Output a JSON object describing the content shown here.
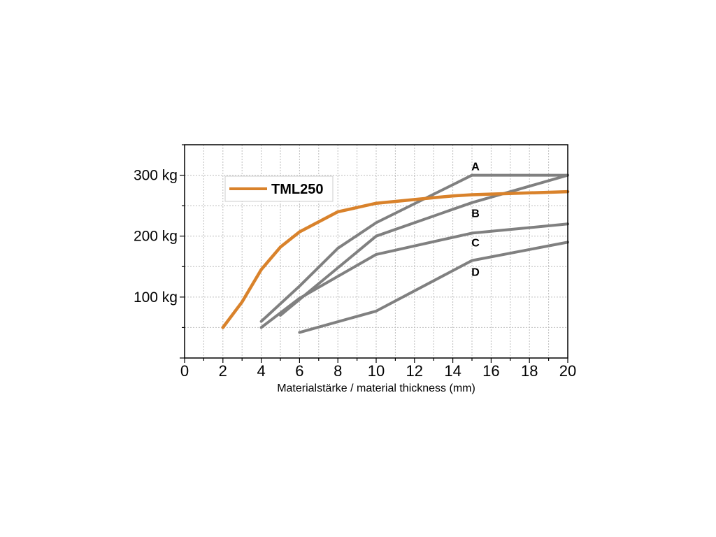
{
  "chart_data": {
    "type": "line",
    "title": "",
    "xlabel": "Materialstärke / material thickness (mm)",
    "ylabel": "",
    "xlim": [
      0,
      20
    ],
    "ylim": [
      0,
      350
    ],
    "x_ticks": [
      "0",
      "2",
      "4",
      "6",
      "8",
      "10",
      "12",
      "14",
      "16",
      "18",
      "20"
    ],
    "y_ticks": [
      {
        "value": 100,
        "label": "100 kg"
      },
      {
        "value": 200,
        "label": "200 kg"
      },
      {
        "value": 300,
        "label": "300 kg"
      }
    ],
    "grid": true,
    "legend": {
      "position": "top-left",
      "entries": [
        "TML250"
      ]
    },
    "series": [
      {
        "name": "TML250",
        "color": "#d9822b",
        "points": [
          [
            2,
            50
          ],
          [
            3,
            92
          ],
          [
            4,
            145
          ],
          [
            5,
            182
          ],
          [
            6,
            207
          ],
          [
            8,
            240
          ],
          [
            10,
            254
          ],
          [
            12,
            260
          ],
          [
            14,
            266
          ],
          [
            15,
            268
          ],
          [
            20,
            273
          ]
        ]
      },
      {
        "name": "A",
        "color": "#808080",
        "points": [
          [
            4,
            60
          ],
          [
            6,
            118
          ],
          [
            8,
            180
          ],
          [
            10,
            222
          ],
          [
            15,
            300
          ],
          [
            20,
            300
          ]
        ],
        "label_at": [
          15,
          315
        ]
      },
      {
        "name": "B",
        "color": "#808080",
        "points": [
          [
            5,
            70
          ],
          [
            8,
            148
          ],
          [
            10,
            200
          ],
          [
            15,
            255
          ],
          [
            20,
            300
          ]
        ],
        "label_at": [
          15,
          238
        ]
      },
      {
        "name": "C",
        "color": "#808080",
        "points": [
          [
            4,
            50
          ],
          [
            6,
            98
          ],
          [
            10,
            170
          ],
          [
            15,
            205
          ],
          [
            20,
            220
          ]
        ],
        "label_at": [
          15,
          190
        ]
      },
      {
        "name": "D",
        "color": "#808080",
        "points": [
          [
            6,
            42
          ],
          [
            10,
            77
          ],
          [
            15,
            160
          ],
          [
            20,
            190
          ]
        ],
        "label_at": [
          15,
          142
        ]
      }
    ]
  }
}
